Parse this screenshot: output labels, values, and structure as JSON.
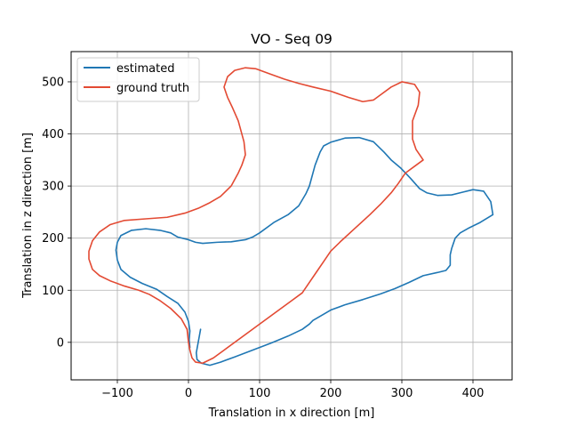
{
  "chart_data": {
    "type": "line",
    "title": "VO - Seq 09",
    "xlabel": "Translation in x direction [m]",
    "ylabel": "Translation in z direction [m]",
    "xlim": [
      -165,
      455
    ],
    "ylim": [
      -72,
      558
    ],
    "xticks": [
      -100,
      0,
      100,
      200,
      300,
      400
    ],
    "yticks": [
      0,
      100,
      200,
      300,
      400,
      500
    ],
    "grid": true,
    "legend_position": "top-left",
    "series": [
      {
        "name": "estimated",
        "color": "#1f77b4",
        "points": [
          [
            17,
            25
          ],
          [
            15,
            10
          ],
          [
            13,
            -5
          ],
          [
            11,
            -20
          ],
          [
            12,
            -33
          ],
          [
            18,
            -40
          ],
          [
            30,
            -44
          ],
          [
            45,
            -38
          ],
          [
            65,
            -28
          ],
          [
            90,
            -15
          ],
          [
            115,
            -2
          ],
          [
            140,
            12
          ],
          [
            160,
            25
          ],
          [
            170,
            35
          ],
          [
            175,
            42
          ],
          [
            185,
            50
          ],
          [
            200,
            62
          ],
          [
            220,
            72
          ],
          [
            245,
            82
          ],
          [
            270,
            93
          ],
          [
            290,
            103
          ],
          [
            310,
            115
          ],
          [
            330,
            128
          ],
          [
            350,
            134
          ],
          [
            362,
            138
          ],
          [
            368,
            148
          ],
          [
            368,
            168
          ],
          [
            370,
            180
          ],
          [
            375,
            200
          ],
          [
            382,
            210
          ],
          [
            395,
            220
          ],
          [
            410,
            230
          ],
          [
            428,
            245
          ],
          [
            425,
            270
          ],
          [
            415,
            290
          ],
          [
            400,
            293
          ],
          [
            385,
            288
          ],
          [
            370,
            283
          ],
          [
            350,
            282
          ],
          [
            335,
            287
          ],
          [
            325,
            295
          ],
          [
            312,
            315
          ],
          [
            298,
            335
          ],
          [
            285,
            350
          ],
          [
            275,
            365
          ],
          [
            260,
            385
          ],
          [
            240,
            393
          ],
          [
            220,
            392
          ],
          [
            200,
            384
          ],
          [
            190,
            377
          ],
          [
            185,
            365
          ],
          [
            178,
            340
          ],
          [
            170,
            300
          ],
          [
            165,
            285
          ],
          [
            155,
            262
          ],
          [
            140,
            245
          ],
          [
            120,
            230
          ],
          [
            100,
            210
          ],
          [
            90,
            202
          ],
          [
            80,
            197
          ],
          [
            60,
            193
          ],
          [
            40,
            192
          ],
          [
            20,
            190
          ],
          [
            10,
            192
          ],
          [
            0,
            197
          ],
          [
            -15,
            202
          ],
          [
            -25,
            210
          ],
          [
            -40,
            215
          ],
          [
            -60,
            218
          ],
          [
            -80,
            215
          ],
          [
            -95,
            205
          ],
          [
            -100,
            192
          ],
          [
            -102,
            177
          ],
          [
            -100,
            158
          ],
          [
            -95,
            140
          ],
          [
            -82,
            125
          ],
          [
            -65,
            113
          ],
          [
            -45,
            102
          ],
          [
            -30,
            88
          ],
          [
            -15,
            75
          ],
          [
            -5,
            58
          ],
          [
            0,
            40
          ],
          [
            2,
            22
          ],
          [
            1,
            5
          ],
          [
            2,
            -10
          ]
        ]
      },
      {
        "name": "ground truth",
        "color": "#e34a33",
        "points": [
          [
            0,
            0
          ],
          [
            2,
            -15
          ],
          [
            5,
            -30
          ],
          [
            10,
            -38
          ],
          [
            20,
            -40
          ],
          [
            35,
            -30
          ],
          [
            50,
            -15
          ],
          [
            70,
            5
          ],
          [
            95,
            30
          ],
          [
            120,
            55
          ],
          [
            145,
            80
          ],
          [
            160,
            95
          ],
          [
            170,
            115
          ],
          [
            180,
            135
          ],
          [
            190,
            155
          ],
          [
            200,
            175
          ],
          [
            215,
            195
          ],
          [
            235,
            220
          ],
          [
            255,
            245
          ],
          [
            270,
            265
          ],
          [
            285,
            287
          ],
          [
            295,
            305
          ],
          [
            305,
            325
          ],
          [
            320,
            340
          ],
          [
            330,
            350
          ],
          [
            320,
            370
          ],
          [
            315,
            390
          ],
          [
            315,
            425
          ],
          [
            323,
            455
          ],
          [
            325,
            480
          ],
          [
            318,
            495
          ],
          [
            300,
            500
          ],
          [
            285,
            490
          ],
          [
            270,
            475
          ],
          [
            260,
            465
          ],
          [
            245,
            462
          ],
          [
            225,
            470
          ],
          [
            200,
            482
          ],
          [
            175,
            490
          ],
          [
            155,
            497
          ],
          [
            135,
            505
          ],
          [
            115,
            515
          ],
          [
            95,
            525
          ],
          [
            80,
            527
          ],
          [
            65,
            522
          ],
          [
            55,
            510
          ],
          [
            50,
            490
          ],
          [
            55,
            470
          ],
          [
            62,
            450
          ],
          [
            70,
            425
          ],
          [
            75,
            400
          ],
          [
            78,
            385
          ],
          [
            80,
            360
          ],
          [
            75,
            340
          ],
          [
            70,
            325
          ],
          [
            60,
            300
          ],
          [
            45,
            280
          ],
          [
            30,
            268
          ],
          [
            15,
            258
          ],
          [
            -5,
            248
          ],
          [
            -30,
            240
          ],
          [
            -60,
            237
          ],
          [
            -90,
            234
          ],
          [
            -110,
            226
          ],
          [
            -125,
            212
          ],
          [
            -135,
            195
          ],
          [
            -140,
            175
          ],
          [
            -140,
            160
          ],
          [
            -135,
            140
          ],
          [
            -125,
            128
          ],
          [
            -110,
            118
          ],
          [
            -90,
            108
          ],
          [
            -70,
            100
          ],
          [
            -55,
            92
          ],
          [
            -40,
            80
          ],
          [
            -25,
            65
          ],
          [
            -10,
            45
          ],
          [
            -2,
            25
          ],
          [
            0,
            0
          ]
        ]
      }
    ]
  }
}
